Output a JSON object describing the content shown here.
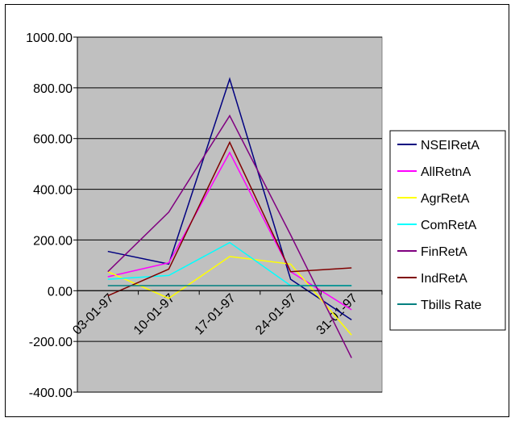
{
  "chart_data": {
    "type": "line",
    "x": [
      "03-01-97",
      "10-01-97",
      "17-01-97",
      "24-01-97",
      "31-01-97"
    ],
    "ylim": [
      -400,
      1000
    ],
    "yticks": [
      -400,
      -200,
      0,
      200,
      400,
      600,
      800,
      1000
    ],
    "ytick_labels": [
      "-400.00",
      "-200.00",
      "0.00",
      "200.00",
      "400.00",
      "600.00",
      "800.00",
      "1000.00"
    ],
    "grid": true,
    "plot_background": "#c0c0c0",
    "legend_position": "right",
    "series": [
      {
        "name": "NSEIRetA",
        "color": "#000080",
        "values": [
          155,
          105,
          835,
          45,
          -115
        ]
      },
      {
        "name": "AllRetnA",
        "color": "#ff00ff",
        "values": [
          55,
          110,
          545,
          75,
          -75
        ]
      },
      {
        "name": "AgrRetA",
        "color": "#ffff00",
        "values": [
          75,
          -30,
          135,
          105,
          -175
        ]
      },
      {
        "name": "ComRetA",
        "color": "#00ffff",
        "values": [
          45,
          60,
          190,
          20,
          20
        ]
      },
      {
        "name": "FinRetA",
        "color": "#800080",
        "values": [
          75,
          310,
          690,
          220,
          -265
        ]
      },
      {
        "name": "IndRetA",
        "color": "#800000",
        "values": [
          -20,
          85,
          585,
          75,
          90
        ]
      },
      {
        "name": "Tbills Rate",
        "color": "#008080",
        "values": [
          20,
          20,
          20,
          20,
          20
        ]
      }
    ]
  }
}
